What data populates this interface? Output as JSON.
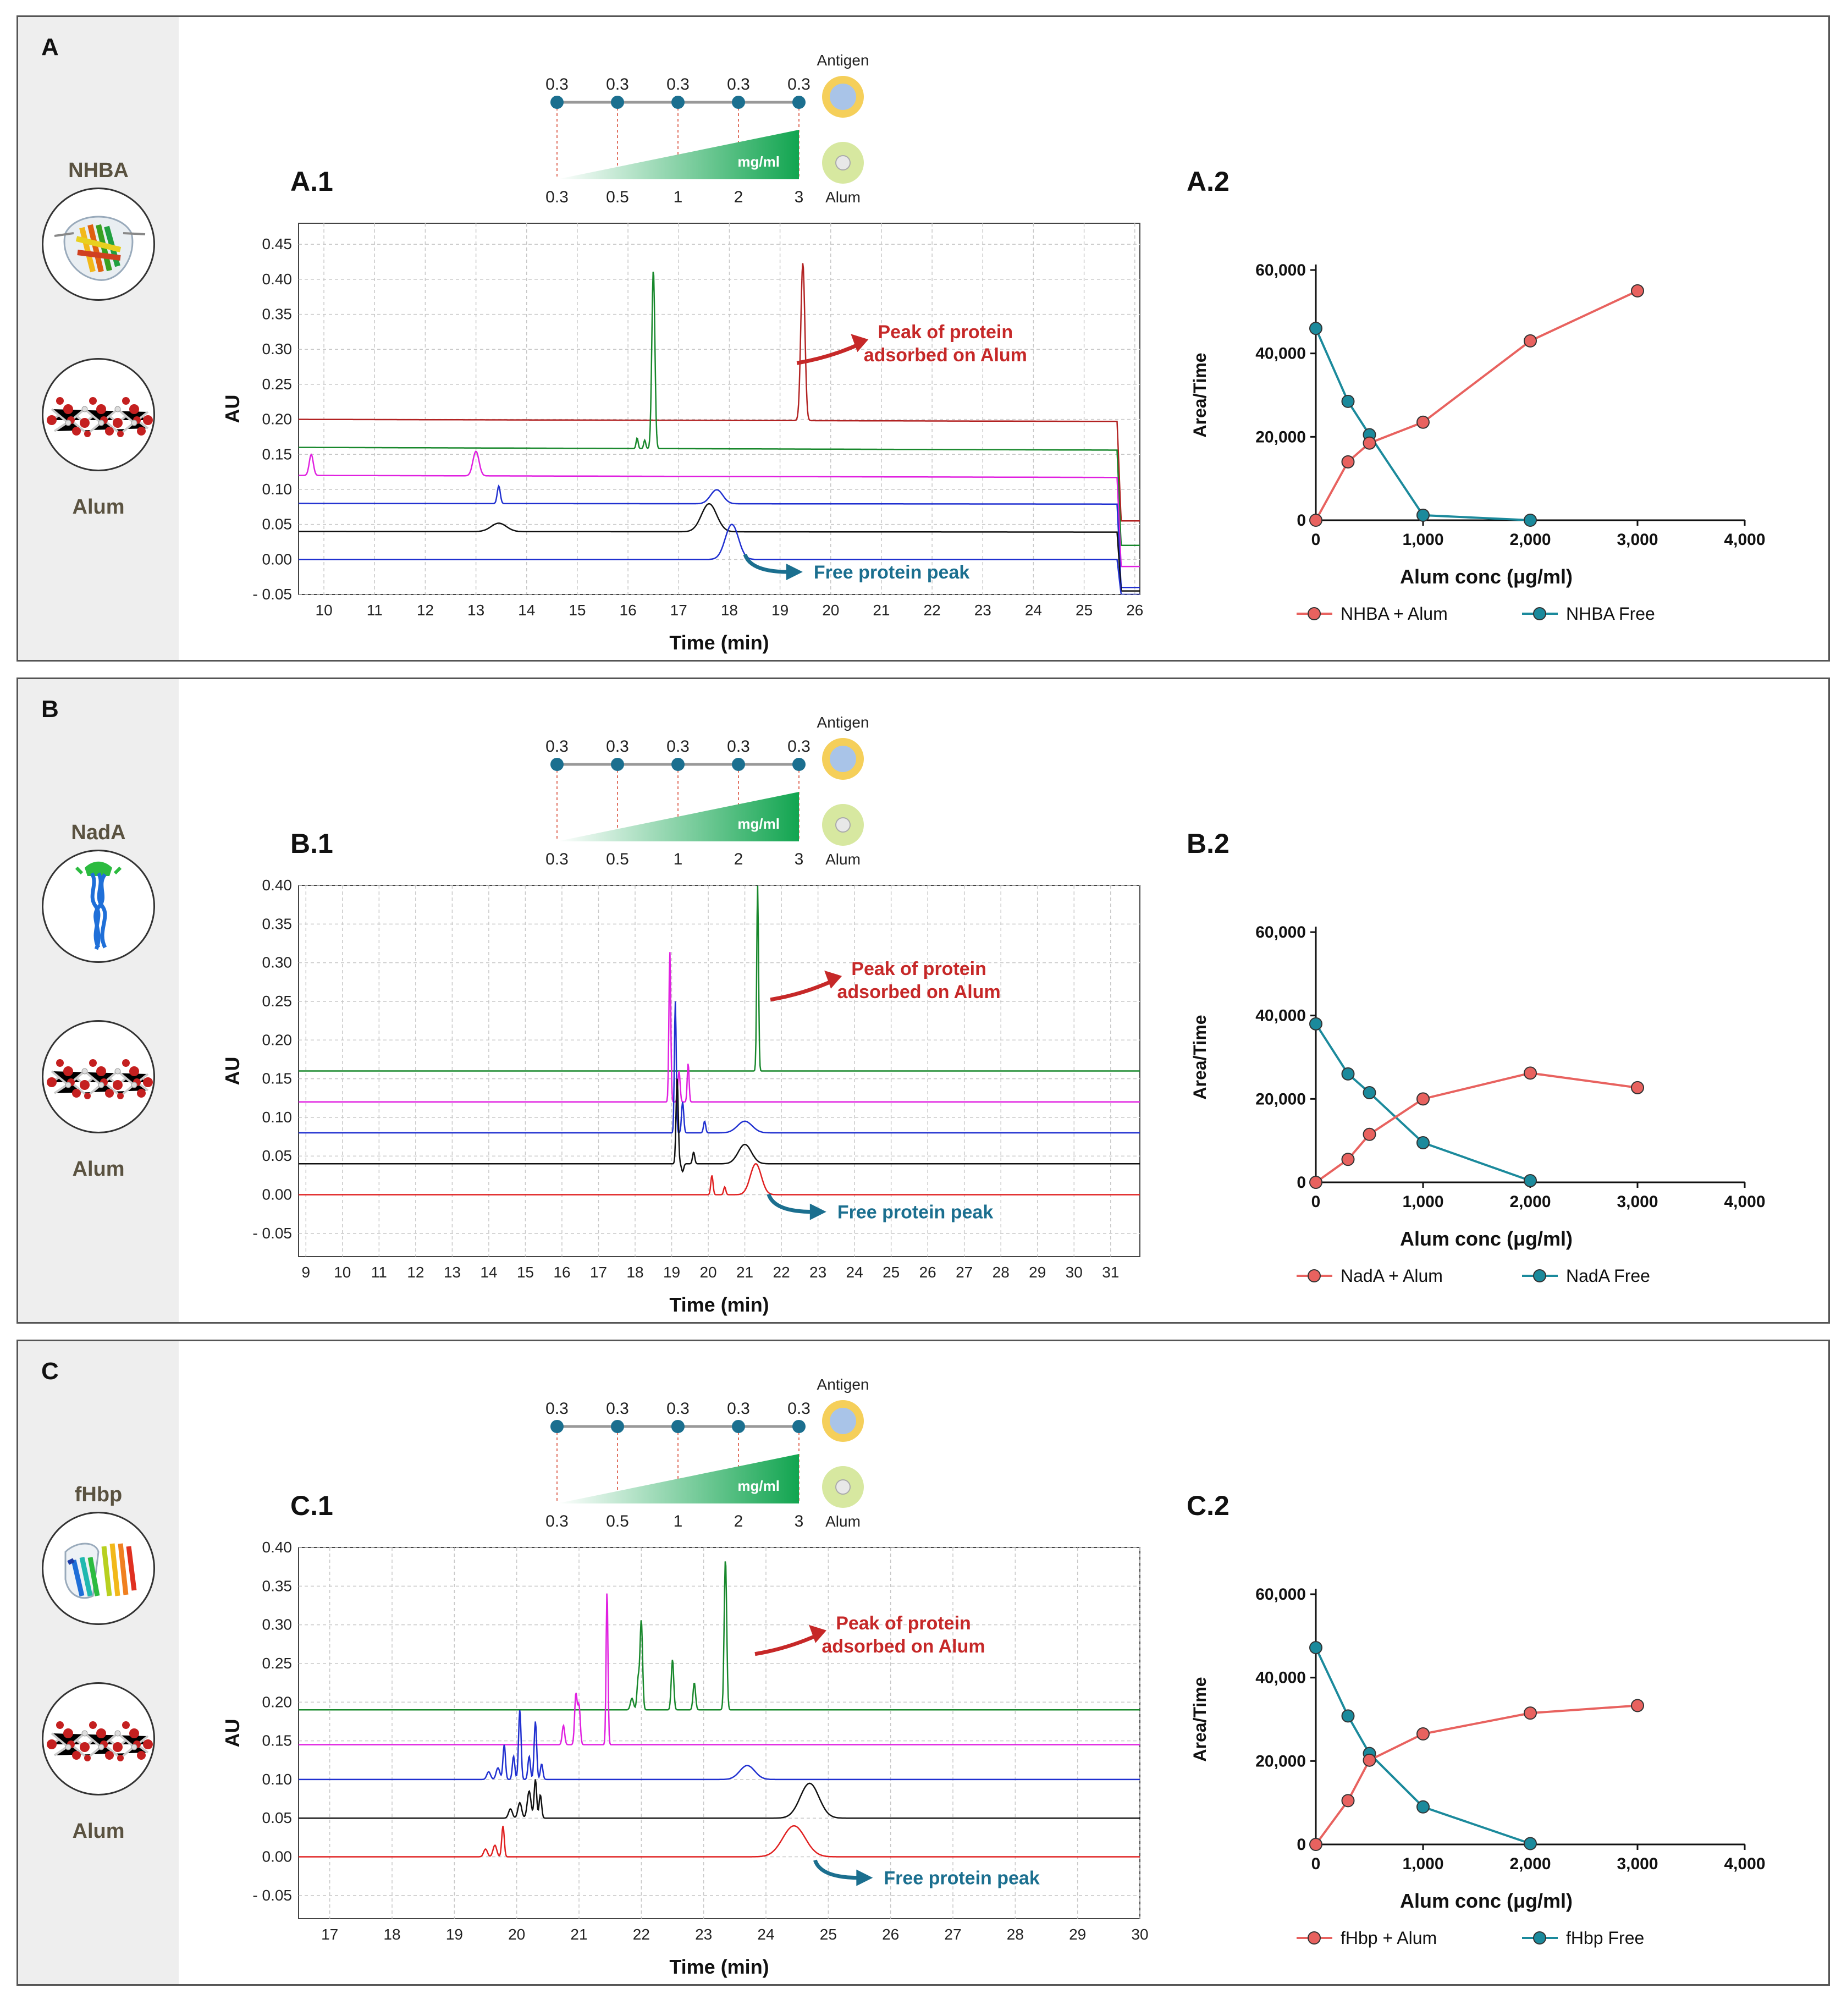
{
  "schematic": {
    "antigen_label": "Antigen",
    "alum_label": "Alum",
    "unit_label": "mg/ml",
    "top_values": [
      "0.3",
      "0.3",
      "0.3",
      "0.3",
      "0.3"
    ],
    "bottom_values": [
      "0.3",
      "0.5",
      "1",
      "2",
      "3"
    ],
    "colors": {
      "dot": "#1b6f8f",
      "dashed": "#e07060",
      "green": "#12a550",
      "antigen": "#f5cf5a",
      "alum": "#d7e8a0"
    }
  },
  "annotations": {
    "adsorbed_text": [
      "Peak of protein",
      "adsorbed on Alum"
    ],
    "free_text": "Free protein peak",
    "red": "#c62828",
    "teal": "#1b6f8f"
  },
  "panels": [
    {
      "letter": "A",
      "protein": "NHBA",
      "alum_name": "Alum",
      "chrom_label": "A.1",
      "graph_label": "A.2",
      "chart_data": [
        {
          "type": "line",
          "chart": "chromatogram",
          "xlabel": "Time (min)",
          "ylabel": "AU",
          "xlim": [
            9.5,
            26.1
          ],
          "ylim": [
            -0.05,
            0.48
          ],
          "xticks": [
            "10",
            "11",
            "12",
            "13",
            "14",
            "15",
            "16",
            "17",
            "18",
            "19",
            "20",
            "21",
            "22",
            "23",
            "24",
            "25",
            "26"
          ],
          "yticks": [
            "- 0.05",
            "0.00",
            "0.05",
            "0.10",
            "0.15",
            "0.20",
            "0.25",
            "0.30",
            "0.35",
            "0.40",
            "0.45"
          ],
          "series": [
            {
              "color": "#b22222",
              "base": 0.2,
              "drift": -0.003,
              "peaks": [
                [
                  19.45,
                  0.225,
                  0.04
                ]
              ],
              "end": 0.055
            },
            {
              "color": "#18882c",
              "base": 0.16,
              "drift": -0.004,
              "peaks": [
                [
                  16.5,
                  0.255,
                  0.03
                ],
                [
                  16.18,
                  0.015,
                  0.02
                ],
                [
                  16.33,
                  0.012,
                  0.02
                ]
              ],
              "end": 0.02
            },
            {
              "color": "#e020e0",
              "base": 0.12,
              "drift": -0.003,
              "peaks": [
                [
                  9.75,
                  0.03,
                  0.04
                ],
                [
                  13.0,
                  0.035,
                  0.06
                ]
              ],
              "end": -0.01
            },
            {
              "color": "#2030d0",
              "base": 0.08,
              "drift": -0.001,
              "peaks": [
                [
                  13.45,
                  0.025,
                  0.03
                ],
                [
                  17.75,
                  0.02,
                  0.12
                ]
              ],
              "end": -0.04
            },
            {
              "color": "#111111",
              "base": 0.04,
              "drift": -0.001,
              "peaks": [
                [
                  13.45,
                  0.012,
                  0.15
                ],
                [
                  17.6,
                  0.04,
                  0.15
                ]
              ],
              "end": -0.045
            },
            {
              "color": "#2030d0",
              "base": 0.0,
              "drift": 0.0,
              "peaks": [
                [
                  18.05,
                  0.05,
                  0.13
                ]
              ],
              "end": -0.05
            }
          ],
          "adsorbed_at": [
            19.55,
            0.3
          ],
          "free_at": [
            18.2,
            -0.01
          ]
        },
        {
          "type": "line",
          "chart": "adsorption",
          "xlabel": "Alum conc (μg/ml)",
          "ylabel": "Area/Time",
          "xlim": [
            0,
            4000
          ],
          "ylim": [
            0,
            60000
          ],
          "xticks": [
            "0",
            "1,000",
            "2,000",
            "3,000",
            "4,000"
          ],
          "yticks": [
            "0",
            "20,000",
            "40,000",
            "60,000"
          ],
          "series": [
            {
              "name": "NHBA + Alum",
              "color": "#e8625f",
              "x": [
                0,
                300,
                500,
                1000,
                2000,
                3000
              ],
              "values": [
                0,
                14000,
                18500,
                23500,
                43000,
                55000
              ]
            },
            {
              "name": "NHBA Free",
              "color": "#1b8a9c",
              "x": [
                0,
                300,
                500,
                1000,
                2000
              ],
              "values": [
                46000,
                28500,
                20500,
                1200,
                0
              ]
            }
          ]
        }
      ]
    },
    {
      "letter": "B",
      "protein": "NadA",
      "alum_name": "Alum",
      "chrom_label": "B.1",
      "graph_label": "B.2",
      "chart_data": [
        {
          "type": "line",
          "chart": "chromatogram",
          "xlabel": "Time (min)",
          "ylabel": "AU",
          "xlim": [
            8.8,
            31.8
          ],
          "ylim": [
            -0.08,
            0.4
          ],
          "xticks": [
            "9",
            "10",
            "11",
            "12",
            "13",
            "14",
            "15",
            "16",
            "17",
            "18",
            "19",
            "20",
            "21",
            "22",
            "23",
            "24",
            "25",
            "26",
            "27",
            "28",
            "29",
            "30",
            "31"
          ],
          "yticks": [
            "- 0.05",
            "0.00",
            "0.05",
            "0.10",
            "0.15",
            "0.20",
            "0.25",
            "0.30",
            "0.35",
            "0.40"
          ],
          "series": [
            {
              "color": "#18882c",
              "base": 0.16,
              "drift": 0.0,
              "peaks": [
                [
                  21.35,
                  0.24,
                  0.025
                ]
              ],
              "end": 0.16
            },
            {
              "color": "#e020e0",
              "base": 0.12,
              "drift": 0.0,
              "peaks": [
                [
                  18.95,
                  0.195,
                  0.025
                ],
                [
                  19.45,
                  0.05,
                  0.025
                ],
                [
                  19.2,
                  0.04,
                  0.03
                ]
              ],
              "end": 0.12
            },
            {
              "color": "#2030d0",
              "base": 0.08,
              "drift": 0.0,
              "peaks": [
                [
                  19.1,
                  0.17,
                  0.025
                ],
                [
                  19.3,
                  0.04,
                  0.03
                ],
                [
                  19.9,
                  0.015,
                  0.03
                ],
                [
                  21.0,
                  0.015,
                  0.2
                ]
              ],
              "end": 0.08
            },
            {
              "color": "#111111",
              "base": 0.04,
              "drift": 0.0,
              "peaks": [
                [
                  19.15,
                  0.11,
                  0.03
                ],
                [
                  19.3,
                  -0.01,
                  0.03
                ],
                [
                  19.6,
                  0.015,
                  0.03
                ],
                [
                  21.0,
                  0.025,
                  0.18
                ]
              ],
              "end": 0.04
            },
            {
              "color": "#e02020",
              "base": 0.0,
              "drift": 0.0,
              "peaks": [
                [
                  20.1,
                  0.025,
                  0.03
                ],
                [
                  20.45,
                  0.01,
                  0.03
                ],
                [
                  21.3,
                  0.04,
                  0.15
                ]
              ],
              "end": 0.0
            }
          ],
          "adsorbed_at": [
            22.0,
            0.27
          ],
          "free_at": [
            21.5,
            -0.015
          ]
        },
        {
          "type": "line",
          "chart": "adsorption",
          "xlabel": "Alum conc (μg/ml)",
          "ylabel": "Area/Time",
          "xlim": [
            0,
            4000
          ],
          "ylim": [
            0,
            60000
          ],
          "xticks": [
            "0",
            "1,000",
            "2,000",
            "3,000",
            "4,000"
          ],
          "yticks": [
            "0",
            "20,000",
            "40,000",
            "60,000"
          ],
          "series": [
            {
              "name": "NadA + Alum",
              "color": "#e8625f",
              "x": [
                0,
                300,
                500,
                1000,
                2000,
                3000
              ],
              "values": [
                0,
                5500,
                11500,
                20000,
                26200,
                22700
              ]
            },
            {
              "name": "NadA Free",
              "color": "#1b8a9c",
              "x": [
                0,
                300,
                500,
                1000,
                2000
              ],
              "values": [
                38000,
                26000,
                21500,
                9500,
                400
              ]
            }
          ]
        }
      ]
    },
    {
      "letter": "C",
      "protein": "fHbp",
      "alum_name": "Alum",
      "chrom_label": "C.1",
      "graph_label": "C.2",
      "chart_data": [
        {
          "type": "line",
          "chart": "chromatogram",
          "xlabel": "Time (min)",
          "ylabel": "AU",
          "xlim": [
            16.5,
            30.0
          ],
          "ylim": [
            -0.08,
            0.4
          ],
          "xticks": [
            "17",
            "18",
            "19",
            "20",
            "21",
            "22",
            "23",
            "24",
            "25",
            "26",
            "27",
            "28",
            "29",
            "30"
          ],
          "yticks": [
            "- 0.05",
            "0.00",
            "0.05",
            "0.10",
            "0.15",
            "0.20",
            "0.25",
            "0.30",
            "0.35",
            "0.40"
          ],
          "series": [
            {
              "color": "#18882c",
              "base": 0.19,
              "drift": 0.0,
              "peaks": [
                [
                  21.85,
                  0.015,
                  0.025
                ],
                [
                  22.0,
                  0.115,
                  0.02
                ],
                [
                  22.5,
                  0.065,
                  0.02
                ],
                [
                  22.85,
                  0.035,
                  0.02
                ],
                [
                  23.35,
                  0.195,
                  0.02
                ],
                [
                  21.95,
                  0.04,
                  0.02
                ]
              ],
              "end": 0.19
            },
            {
              "color": "#e020e0",
              "base": 0.145,
              "drift": 0.0,
              "peaks": [
                [
                  20.75,
                  0.025,
                  0.02
                ],
                [
                  20.95,
                  0.065,
                  0.02
                ],
                [
                  21.0,
                  0.05,
                  0.02
                ],
                [
                  21.45,
                  0.2,
                  0.015
                ]
              ],
              "end": 0.145
            },
            {
              "color": "#2030d0",
              "base": 0.1,
              "drift": 0.0,
              "peaks": [
                [
                  19.55,
                  0.01,
                  0.03
                ],
                [
                  19.7,
                  0.015,
                  0.03
                ],
                [
                  19.8,
                  0.045,
                  0.02
                ],
                [
                  19.95,
                  0.03,
                  0.02
                ],
                [
                  20.05,
                  0.09,
                  0.02
                ],
                [
                  20.2,
                  0.03,
                  0.02
                ],
                [
                  20.3,
                  0.075,
                  0.02
                ],
                [
                  20.4,
                  0.02,
                  0.02
                ],
                [
                  23.7,
                  0.018,
                  0.12
                ]
              ],
              "end": 0.1
            },
            {
              "color": "#111111",
              "base": 0.05,
              "drift": 0.0,
              "peaks": [
                [
                  19.9,
                  0.012,
                  0.03
                ],
                [
                  20.05,
                  0.02,
                  0.03
                ],
                [
                  20.2,
                  0.035,
                  0.03
                ],
                [
                  20.3,
                  0.05,
                  0.02
                ],
                [
                  20.38,
                  0.03,
                  0.02
                ],
                [
                  24.7,
                  0.045,
                  0.15
                ]
              ],
              "end": 0.05
            },
            {
              "color": "#e02020",
              "base": 0.0,
              "drift": 0.0,
              "peaks": [
                [
                  19.5,
                  0.01,
                  0.03
                ],
                [
                  19.65,
                  0.015,
                  0.03
                ],
                [
                  19.78,
                  0.04,
                  0.02
                ],
                [
                  24.45,
                  0.04,
                  0.18
                ]
              ],
              "end": 0.0
            }
          ],
          "adsorbed_at": [
            24.0,
            0.28
          ],
          "free_at": [
            24.7,
            -0.02
          ]
        },
        {
          "type": "line",
          "chart": "adsorption",
          "xlabel": "Alum conc (μg/ml)",
          "ylabel": "Area/Time",
          "xlim": [
            0,
            4000
          ],
          "ylim": [
            0,
            60000
          ],
          "xticks": [
            "0",
            "1,000",
            "2,000",
            "3,000",
            "4,000"
          ],
          "yticks": [
            "0",
            "20,000",
            "40,000",
            "60,000"
          ],
          "series": [
            {
              "name": "fHbp + Alum",
              "color": "#e8625f",
              "x": [
                0,
                300,
                500,
                1000,
                2000,
                3000
              ],
              "values": [
                0,
                10500,
                20200,
                26500,
                31500,
                33300
              ]
            },
            {
              "name": "fHbp  Free",
              "color": "#1b8a9c",
              "x": [
                0,
                300,
                500,
                1000,
                2000
              ],
              "values": [
                47200,
                30800,
                21800,
                9000,
                200
              ]
            }
          ]
        }
      ]
    }
  ]
}
